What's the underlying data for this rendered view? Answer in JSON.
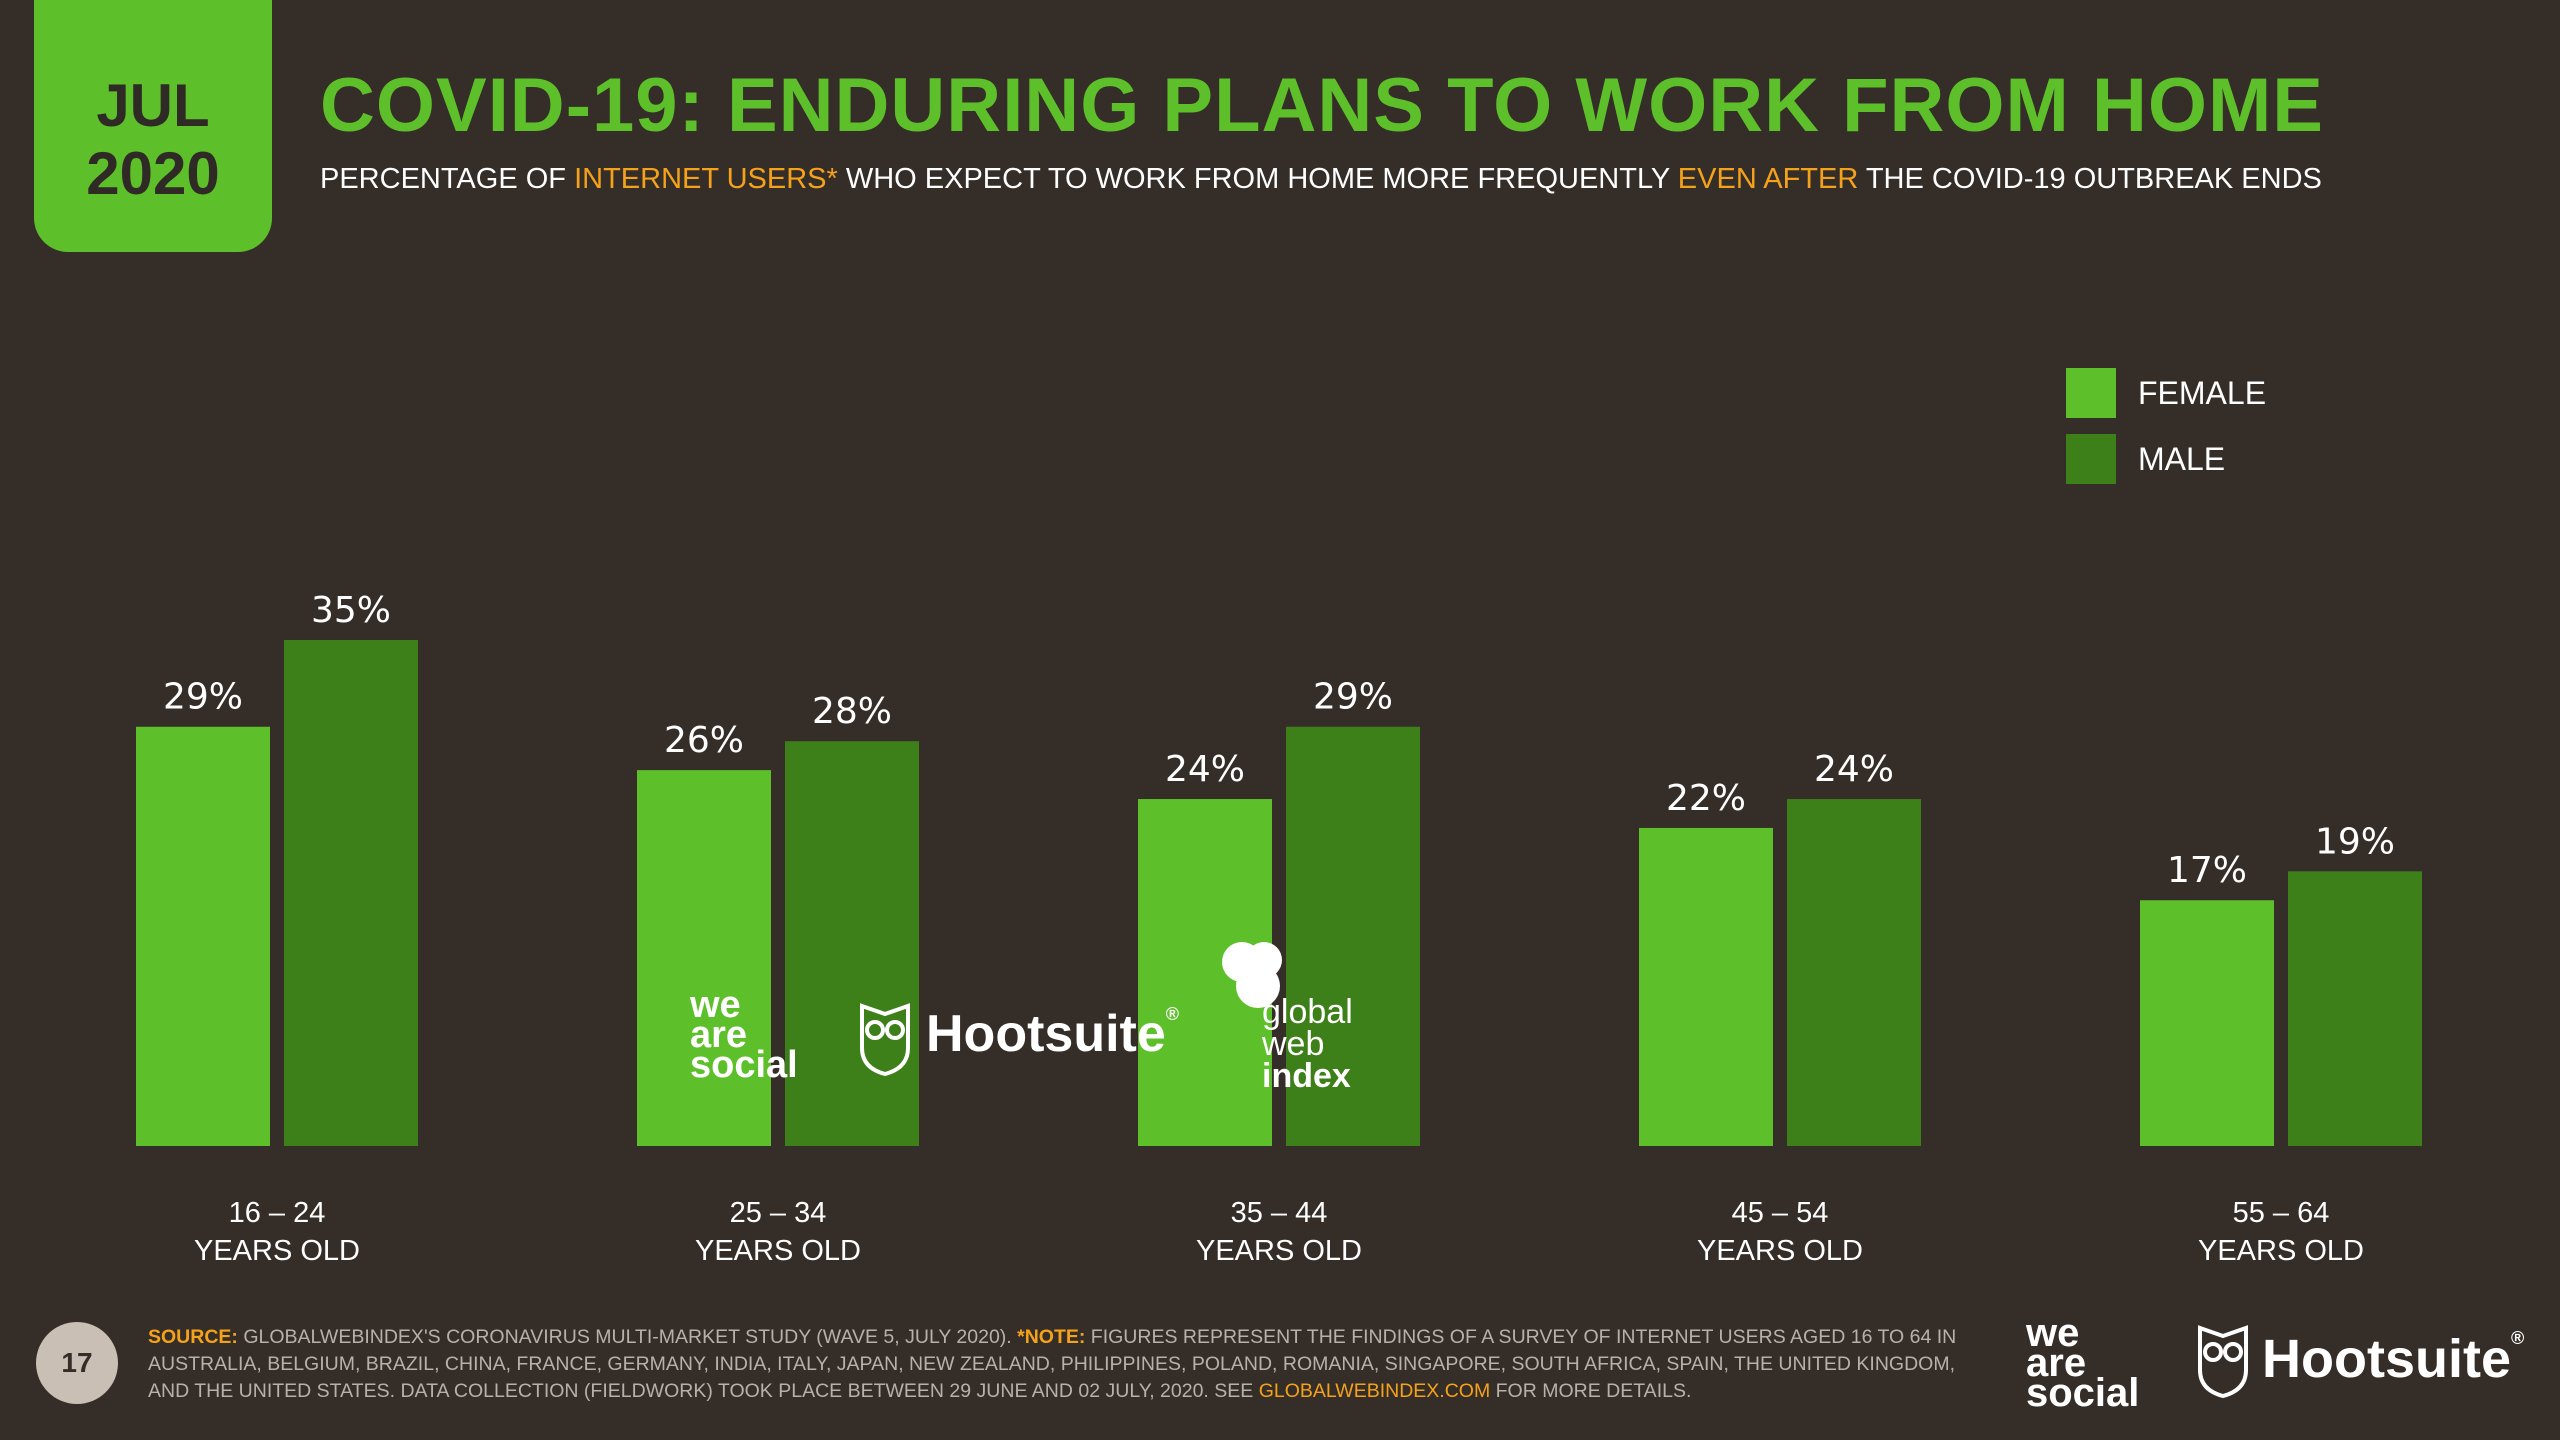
{
  "date": {
    "month": "JUL",
    "year": "2020"
  },
  "header": {
    "title": "COVID-19: ENDURING PLANS TO WORK FROM HOME",
    "subtitle_1": "PERCENTAGE OF ",
    "subtitle_hl1": "INTERNET USERS*",
    "subtitle_2": " WHO EXPECT TO WORK FROM HOME MORE FREQUENTLY ",
    "subtitle_hl2": "EVEN AFTER",
    "subtitle_3": " THE COVID-19 OUTBREAK ENDS"
  },
  "colors": {
    "female": "#5dbf29",
    "male": "#3d7f18",
    "background": "#352d28",
    "accent": "#f5a21b"
  },
  "chart_data": {
    "type": "bar",
    "categories": [
      [
        "16 – 24",
        "YEARS OLD"
      ],
      [
        "25 – 34",
        "YEARS OLD"
      ],
      [
        "35 – 44",
        "YEARS OLD"
      ],
      [
        "45 – 54",
        "YEARS OLD"
      ],
      [
        "55 – 64",
        "YEARS OLD"
      ]
    ],
    "series": [
      {
        "name": "FEMALE",
        "values": [
          29,
          26,
          24,
          22,
          17
        ],
        "labels": [
          "29%",
          "26%",
          "24%",
          "22%",
          "17%"
        ]
      },
      {
        "name": "MALE",
        "values": [
          35,
          28,
          29,
          24,
          19
        ],
        "labels": [
          "35%",
          "28%",
          "29%",
          "24%",
          "19%"
        ]
      }
    ],
    "ylim": [
      0,
      35
    ],
    "legend_position": "top-right",
    "grid": false
  },
  "logos": {
    "wearesocial": [
      "we",
      "are",
      "social"
    ],
    "hootsuite": "Hootsuite",
    "gwi": [
      "global",
      "web",
      "index"
    ],
    "registered": "®"
  },
  "footer": {
    "source_label": "SOURCE:",
    "source_text": " GLOBALWEBINDEX'S CORONAVIRUS MULTI-MARKET STUDY (WAVE 5, JULY 2020). ",
    "note_label": "*NOTE:",
    "note_text": " FIGURES REPRESENT THE FINDINGS OF A SURVEY OF INTERNET USERS AGED 16 TO 64 IN AUSTRALIA, BELGIUM, BRAZIL, CHINA, FRANCE, GERMANY, INDIA, ITALY, JAPAN, NEW ZEALAND, PHILIPPINES, POLAND, ROMANIA, SINGAPORE, SOUTH AFRICA, SPAIN, THE UNITED KINGDOM, AND THE UNITED STATES. DATA COLLECTION (FIELDWORK) TOOK PLACE BETWEEN 29 JUNE AND 02 JULY, 2020. SEE ",
    "link": "GLOBALWEBINDEX.COM",
    "tail": " FOR MORE DETAILS.",
    "page_number": "17"
  }
}
